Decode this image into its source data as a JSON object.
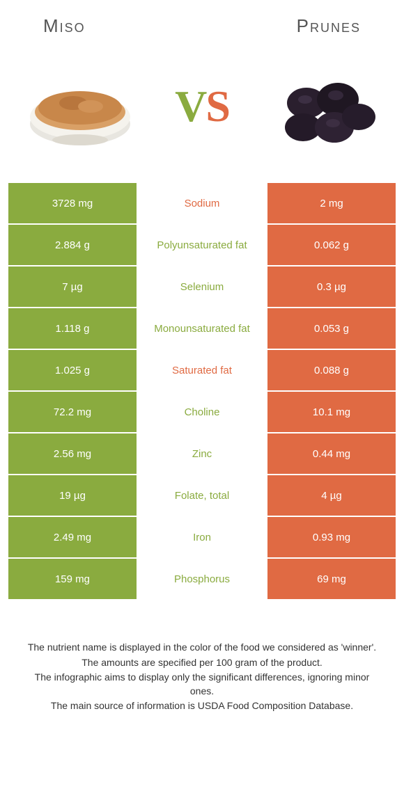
{
  "header": {
    "left": "Miso",
    "right": "Prunes"
  },
  "vs": {
    "v": "V",
    "s": "S"
  },
  "colors": {
    "green": "#8aab3f",
    "orange": "#e06a43",
    "bg": "#ffffff",
    "text": "#333333"
  },
  "rows": [
    {
      "left": "3728 mg",
      "label": "Sodium",
      "right": "2 mg",
      "winner": "orange"
    },
    {
      "left": "2.884 g",
      "label": "Polyunsaturated fat",
      "right": "0.062 g",
      "winner": "green"
    },
    {
      "left": "7 µg",
      "label": "Selenium",
      "right": "0.3 µg",
      "winner": "green"
    },
    {
      "left": "1.118 g",
      "label": "Monounsaturated fat",
      "right": "0.053 g",
      "winner": "green"
    },
    {
      "left": "1.025 g",
      "label": "Saturated fat",
      "right": "0.088 g",
      "winner": "orange"
    },
    {
      "left": "72.2 mg",
      "label": "Choline",
      "right": "10.1 mg",
      "winner": "green"
    },
    {
      "left": "2.56 mg",
      "label": "Zinc",
      "right": "0.44 mg",
      "winner": "green"
    },
    {
      "left": "19 µg",
      "label": "Folate, total",
      "right": "4 µg",
      "winner": "green"
    },
    {
      "left": "2.49 mg",
      "label": "Iron",
      "right": "0.93 mg",
      "winner": "green"
    },
    {
      "left": "159 mg",
      "label": "Phosphorus",
      "right": "69 mg",
      "winner": "green"
    }
  ],
  "footnotes": [
    "The nutrient name is displayed in the color of the food we considered as 'winner'.",
    "The amounts are specified per 100 gram of the product.",
    "The infographic aims to display only the significant differences, ignoring minor ones.",
    "The main source of information is USDA Food Composition Database."
  ]
}
